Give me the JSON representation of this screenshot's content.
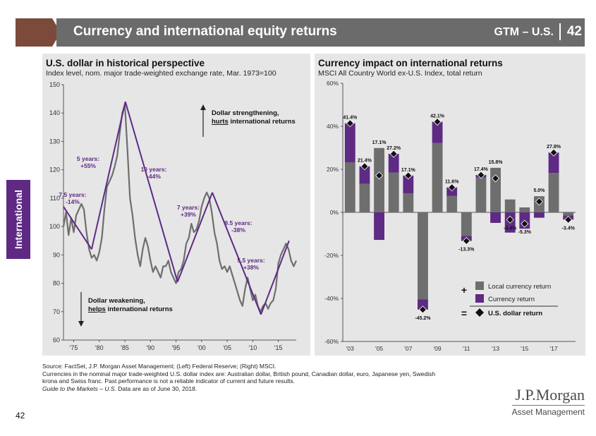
{
  "header": {
    "title": "Currency and international equity returns",
    "gtm": "GTM – U.S.",
    "page_number": "42"
  },
  "side_tab": {
    "label": "International"
  },
  "colors": {
    "header_gray": "#6b6b6b",
    "chevron_brown": "#7b4a3a",
    "purple": "#5e2a84",
    "line_gray": "#6e6e6e",
    "bar_gray": "#6e6e6e",
    "panel_bg": "#e6e6e6"
  },
  "chart_data": [
    {
      "type": "line",
      "title": "U.S. dollar in historical perspective",
      "subtitle": "Index level, nom. major trade-weighted exchange rate, Mar. 1973=100",
      "ylim": [
        60,
        150
      ],
      "yticks": [
        60,
        70,
        80,
        90,
        100,
        110,
        120,
        130,
        140,
        150
      ],
      "xlim": [
        1973,
        2018.5
      ],
      "xticks": [
        1975,
        1980,
        1985,
        1990,
        1995,
        2000,
        2005,
        2010,
        2015
      ],
      "xtick_labels": [
        "'75",
        "'80",
        "'85",
        "'90",
        "'95",
        "'00",
        "'05",
        "'10",
        "'15"
      ],
      "series": [
        {
          "name": "Major trade-weighted dollar index",
          "x": [
            1973,
            1973.5,
            1974,
            1974.5,
            1975,
            1975.5,
            1976,
            1976.5,
            1977,
            1977.5,
            1978,
            1978.5,
            1979,
            1979.5,
            1980,
            1980.5,
            1981,
            1981.5,
            1982,
            1982.5,
            1983,
            1983.5,
            1984,
            1984.5,
            1985,
            1985.5,
            1986,
            1986.5,
            1987,
            1987.5,
            1988,
            1988.5,
            1989,
            1989.5,
            1990,
            1990.5,
            1991,
            1991.5,
            1992,
            1992.5,
            1993,
            1993.5,
            1994,
            1994.5,
            1995,
            1995.5,
            1996,
            1996.5,
            1997,
            1997.5,
            1998,
            1998.5,
            1999,
            1999.5,
            2000,
            2000.5,
            2001,
            2001.5,
            2002,
            2002.5,
            2003,
            2003.5,
            2004,
            2004.5,
            2005,
            2005.5,
            2006,
            2006.5,
            2007,
            2007.5,
            2008,
            2008.5,
            2009,
            2009.5,
            2010,
            2010.5,
            2011,
            2011.5,
            2012,
            2012.5,
            2013,
            2013.5,
            2014,
            2014.5,
            2015,
            2015.5,
            2016,
            2016.5,
            2017,
            2017.5,
            2018,
            2018.5
          ],
          "values": [
            100,
            105,
            97,
            103,
            98,
            104,
            106,
            108,
            106,
            98,
            92,
            89,
            90,
            88,
            91,
            96,
            106,
            114,
            116,
            118,
            121,
            125,
            133,
            140,
            143,
            127,
            110,
            104,
            96,
            90,
            86,
            92,
            96,
            93,
            88,
            84,
            86,
            84,
            82,
            86,
            86,
            88,
            84,
            82,
            80,
            84,
            85,
            88,
            94,
            96,
            101,
            98,
            99,
            102,
            107,
            110,
            112,
            110,
            105,
            98,
            94,
            88,
            85,
            86,
            84,
            86,
            83,
            80,
            77,
            74,
            72,
            78,
            82,
            78,
            74,
            76,
            72,
            70,
            72,
            73,
            71,
            73,
            74,
            78,
            87,
            90,
            92,
            94,
            92,
            88,
            86,
            88
          ]
        }
      ],
      "trend_lines": [
        {
          "x": [
            1973,
            1978.5
          ],
          "y": [
            107,
            92
          ]
        },
        {
          "x": [
            1978.5,
            1985.1
          ],
          "y": [
            92,
            144
          ]
        },
        {
          "x": [
            1985.1,
            1995.3
          ],
          "y": [
            144,
            80.5
          ]
        },
        {
          "x": [
            1995.3,
            2002.1
          ],
          "y": [
            80.5,
            112
          ]
        },
        {
          "x": [
            2002.1,
            2011.6
          ],
          "y": [
            112,
            69
          ]
        },
        {
          "x": [
            2011.6,
            2017.1
          ],
          "y": [
            69,
            95
          ]
        }
      ],
      "annotations": [
        {
          "label": "7.5 years:",
          "value": "-14%"
        },
        {
          "label": "5 years:",
          "value": "+55%"
        },
        {
          "label": "10 years:",
          "value": "-44%"
        },
        {
          "label": "7 years:",
          "value": "+39%"
        },
        {
          "label": "9.5 years:",
          "value": "-38%"
        },
        {
          "label": "5.5 years:",
          "value": "+38%"
        }
      ],
      "callouts": {
        "up": {
          "line1": "Dollar strengthening,",
          "line2_underlined": "hurts",
          "line2_rest": " international returns"
        },
        "down": {
          "line1": "Dollar weakening,",
          "line2_underlined": "helps",
          "line2_rest": " international returns"
        }
      }
    },
    {
      "type": "bar",
      "title": "Currency impact on international returns",
      "subtitle": "MSCI All Country World ex-U.S. Index, total return",
      "ylim": [
        -60,
        60
      ],
      "yticks": [
        -60,
        -40,
        -20,
        0,
        20,
        40,
        60
      ],
      "ytick_labels": [
        "-60%",
        "-40%",
        "-20%",
        "0%",
        "20%",
        "40%",
        "60%"
      ],
      "categories": [
        "2003",
        "2004",
        "2005",
        "2006",
        "2007",
        "2008",
        "2009",
        "2010",
        "2011",
        "2012",
        "2013",
        "2014",
        "2015",
        "2016",
        "2017",
        "2018"
      ],
      "xtick_labels": [
        "'03",
        "'05",
        "'07",
        "'09",
        "'11",
        "'13",
        "'15",
        "'17"
      ],
      "xtick_every": 2,
      "series": [
        {
          "name": "Local currency return",
          "values": [
            23.3,
            13.3,
            29.9,
            18.5,
            8.8,
            -40.4,
            32.2,
            7.6,
            -11.0,
            16.2,
            20.7,
            6.0,
            2.3,
            7.5,
            18.3,
            -1.4
          ]
        },
        {
          "name": "Currency return",
          "values": [
            18.1,
            8.1,
            -12.8,
            8.7,
            8.3,
            -4.8,
            9.9,
            4.0,
            -2.3,
            1.2,
            -4.9,
            -9.4,
            -7.6,
            -2.5,
            9.5,
            -2.0
          ]
        },
        {
          "name": "U.S. dollar return",
          "values": [
            41.4,
            21.4,
            17.1,
            27.2,
            17.1,
            -45.2,
            42.1,
            11.6,
            -13.3,
            17.4,
            15.8,
            -3.4,
            -5.3,
            5.0,
            27.8,
            -3.4
          ]
        }
      ],
      "data_labels": [
        "41.4%",
        "21.4%",
        "17.1%",
        "27.2%",
        "17.1%",
        "-45.2%",
        "42.1%",
        "11.6%",
        "-13.3%",
        "17.4%",
        "15.8%",
        "-3.4%",
        "-5.3%",
        "5.0%",
        "27.8%",
        "-3.4%"
      ],
      "legend": {
        "position": "bottom-right",
        "plus": "+",
        "equals": "=",
        "items": [
          "Local currency return",
          "Currency return",
          "U.S. dollar return"
        ]
      }
    }
  ],
  "footnotes": {
    "source": "Source: FactSet, J.P. Morgan Asset Management; (Left) Federal Reserve; (Right) MSCI.",
    "line2": "Currencies in the nominal major trade-weighted U.S. dollar index are: Australian dollar, British pound, Canadian dollar, euro, Japanese yen, Swedish",
    "line3": "krona and Swiss franc. Past performance is not a reliable indicator of current and future results.",
    "line4_italic": "Guide to the Markets – U.S.",
    "line4_rest": " Data are as of June 30, 2018."
  },
  "page_number": "42",
  "logo": {
    "name": "J.P.Morgan",
    "subtitle": "Asset Management"
  }
}
